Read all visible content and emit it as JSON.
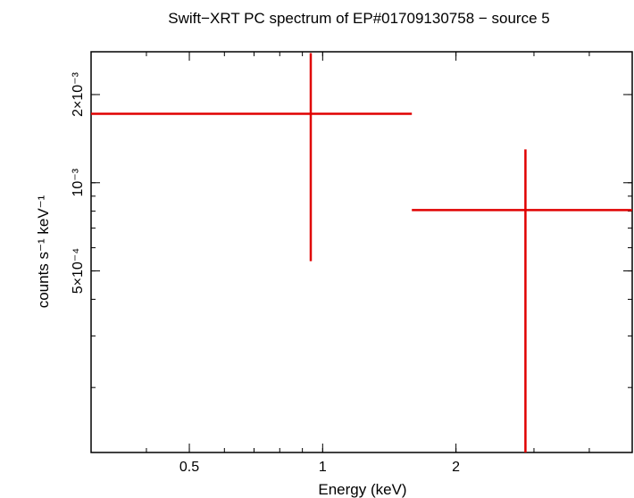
{
  "chart_data": {
    "type": "scatter",
    "title": "Swift−XRT PC spectrum of EP#01709130758 − source 5",
    "xlabel": "Energy (keV)",
    "ylabel": "counts s⁻¹ keV⁻¹",
    "x_scale": "log",
    "y_scale": "log",
    "xlim": [
      0.3,
      5.0
    ],
    "ylim": [
      0.00012,
      0.0028
    ],
    "x_ticks": [
      {
        "value": 0.5,
        "label": "0.5"
      },
      {
        "value": 1,
        "label": "1"
      },
      {
        "value": 2,
        "label": "2"
      }
    ],
    "y_ticks": [
      {
        "value": 0.0005,
        "label": "5×10⁻⁴"
      },
      {
        "value": 0.001,
        "label": "10⁻³"
      },
      {
        "value": 0.002,
        "label": "2×10⁻³"
      }
    ],
    "series": [
      {
        "color": "#e00000",
        "points": [
          {
            "x": 0.94,
            "y": 0.00172,
            "xerr": [
              0.3,
              1.59
            ],
            "yerr": [
              0.00054,
              0.00277
            ]
          },
          {
            "x": 2.87,
            "y": 0.000807,
            "xerr": [
              1.59,
              5.0
            ],
            "yerr": [
              0.00012,
              0.0013
            ]
          }
        ]
      }
    ]
  }
}
